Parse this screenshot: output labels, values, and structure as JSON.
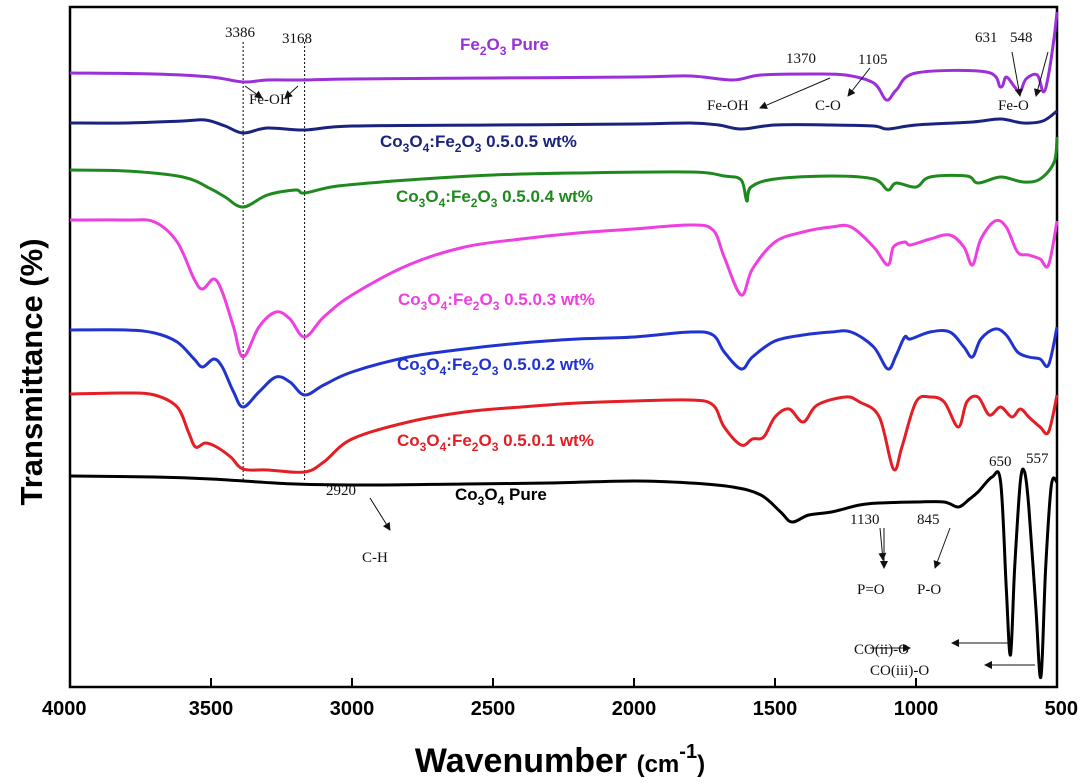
{
  "chart_data": {
    "type": "line",
    "xlabel_main": "Wavenumber ",
    "xlabel_unit_pre": "(cm",
    "xlabel_unit_sup": "-1",
    "xlabel_unit_post": ")",
    "ylabel": "Transmittance (%)",
    "xlim": [
      4000,
      500
    ],
    "x_reversed": true,
    "y_ticks_shown": false,
    "grid": false,
    "x_ticks": [
      {
        "v": 4000,
        "label": "4000"
      },
      {
        "v": 3500,
        "label": "3500"
      },
      {
        "v": 3000,
        "label": "3000"
      },
      {
        "v": 2500,
        "label": "2500"
      },
      {
        "v": 2000,
        "label": "2000"
      },
      {
        "v": 1500,
        "label": "1500"
      },
      {
        "v": 1000,
        "label": "1000"
      },
      {
        "v": 500,
        "label": "500"
      }
    ],
    "reference_lines": [
      3386,
      3168
    ],
    "series": [
      {
        "name": "Fe2O3 Pure",
        "label_parts": [
          "Fe",
          "2",
          "O",
          "3",
          " Pure"
        ],
        "color": "#9b30d9",
        "points": [
          [
            4000,
            66
          ],
          [
            3700,
            67
          ],
          [
            3500,
            70
          ],
          [
            3386,
            75
          ],
          [
            3300,
            73
          ],
          [
            3168,
            73
          ],
          [
            3000,
            72
          ],
          [
            2500,
            71
          ],
          [
            2000,
            70
          ],
          [
            1800,
            69
          ],
          [
            1650,
            73
          ],
          [
            1550,
            68
          ],
          [
            1370,
            67
          ],
          [
            1250,
            68
          ],
          [
            1150,
            76
          ],
          [
            1105,
            93
          ],
          [
            1070,
            83
          ],
          [
            1000,
            66
          ],
          [
            750,
            65
          ],
          [
            700,
            80
          ],
          [
            680,
            70
          ],
          [
            650,
            80
          ],
          [
            631,
            85
          ],
          [
            610,
            72
          ],
          [
            570,
            68
          ],
          [
            548,
            85
          ],
          [
            530,
            68
          ],
          [
            510,
            30
          ],
          [
            500,
            5
          ]
        ]
      },
      {
        "name": "Co3O4:Fe2O3 0.5.0.5 wt%",
        "label_parts": [
          "Co",
          "3",
          "O",
          "4",
          ":Fe",
          "2",
          "O",
          "3",
          " 0.5.0.5 wt%"
        ],
        "color": "#1a237e",
        "points": [
          [
            4000,
            116
          ],
          [
            3800,
            116
          ],
          [
            3600,
            114
          ],
          [
            3520,
            113
          ],
          [
            3450,
            119
          ],
          [
            3386,
            126
          ],
          [
            3300,
            121
          ],
          [
            3168,
            123
          ],
          [
            3000,
            119
          ],
          [
            2500,
            118
          ],
          [
            2000,
            117
          ],
          [
            1800,
            116
          ],
          [
            1700,
            118
          ],
          [
            1620,
            122
          ],
          [
            1500,
            118
          ],
          [
            1300,
            118
          ],
          [
            1150,
            119
          ],
          [
            1100,
            122
          ],
          [
            1000,
            118
          ],
          [
            800,
            115
          ],
          [
            700,
            112
          ],
          [
            620,
            116
          ],
          [
            550,
            114
          ],
          [
            500,
            104
          ]
        ]
      },
      {
        "name": "Co3O4:Fe2O3 0.5.0.4 wt%",
        "label_parts": [
          "Co",
          "3",
          "O",
          "4",
          ":Fe",
          "2",
          "O",
          "3",
          " 0.5.0.4 wt%"
        ],
        "color": "#1e8a1e",
        "points": [
          [
            4000,
            163
          ],
          [
            3800,
            164
          ],
          [
            3600,
            170
          ],
          [
            3500,
            182
          ],
          [
            3450,
            190
          ],
          [
            3386,
            200
          ],
          [
            3300,
            188
          ],
          [
            3200,
            183
          ],
          [
            3168,
            186
          ],
          [
            3050,
            179
          ],
          [
            2800,
            173
          ],
          [
            2500,
            168
          ],
          [
            2200,
            166
          ],
          [
            1800,
            165
          ],
          [
            1680,
            169
          ],
          [
            1620,
            173
          ],
          [
            1600,
            194
          ],
          [
            1585,
            180
          ],
          [
            1500,
            172
          ],
          [
            1300,
            169
          ],
          [
            1150,
            172
          ],
          [
            1100,
            183
          ],
          [
            1070,
            176
          ],
          [
            1000,
            180
          ],
          [
            950,
            170
          ],
          [
            820,
            169
          ],
          [
            780,
            176
          ],
          [
            700,
            170
          ],
          [
            620,
            175
          ],
          [
            560,
            172
          ],
          [
            510,
            155
          ],
          [
            500,
            130
          ]
        ]
      },
      {
        "name": "Co3O4:Fe2O3 0.5.0.3 wt%",
        "label_parts": [
          "Co",
          "3",
          "O",
          "4",
          ":Fe",
          "2",
          "O",
          "3",
          " 0.5.0.3 wt%"
        ],
        "color": "#ee3fe0",
        "points": [
          [
            4000,
            213
          ],
          [
            3800,
            213
          ],
          [
            3700,
            215
          ],
          [
            3620,
            235
          ],
          [
            3560,
            272
          ],
          [
            3530,
            282
          ],
          [
            3490,
            272
          ],
          [
            3460,
            285
          ],
          [
            3420,
            320
          ],
          [
            3386,
            350
          ],
          [
            3330,
            320
          ],
          [
            3270,
            305
          ],
          [
            3220,
            312
          ],
          [
            3168,
            330
          ],
          [
            3100,
            310
          ],
          [
            3000,
            288
          ],
          [
            2800,
            258
          ],
          [
            2600,
            240
          ],
          [
            2400,
            232
          ],
          [
            2200,
            226
          ],
          [
            2000,
            222
          ],
          [
            1800,
            218
          ],
          [
            1720,
            223
          ],
          [
            1680,
            250
          ],
          [
            1620,
            288
          ],
          [
            1580,
            262
          ],
          [
            1500,
            235
          ],
          [
            1400,
            225
          ],
          [
            1300,
            220
          ],
          [
            1230,
            220
          ],
          [
            1150,
            240
          ],
          [
            1100,
            258
          ],
          [
            1080,
            240
          ],
          [
            1040,
            235
          ],
          [
            1020,
            238
          ],
          [
            950,
            232
          ],
          [
            880,
            228
          ],
          [
            830,
            240
          ],
          [
            800,
            258
          ],
          [
            770,
            232
          ],
          [
            720,
            214
          ],
          [
            680,
            220
          ],
          [
            640,
            245
          ],
          [
            600,
            248
          ],
          [
            560,
            252
          ],
          [
            530,
            258
          ],
          [
            500,
            214
          ]
        ]
      },
      {
        "name": "Co3O4:Fe2O3 0.5.0.2 wt%",
        "label_parts": [
          "Co",
          "3",
          "O",
          "4",
          ":Fe",
          "2",
          "O",
          "3",
          " 0.5.0.2 wt%"
        ],
        "color": "#2033d0",
        "points": [
          [
            4000,
            323
          ],
          [
            3800,
            323
          ],
          [
            3700,
            326
          ],
          [
            3620,
            335
          ],
          [
            3560,
            352
          ],
          [
            3530,
            360
          ],
          [
            3490,
            352
          ],
          [
            3460,
            360
          ],
          [
            3420,
            385
          ],
          [
            3386,
            400
          ],
          [
            3330,
            385
          ],
          [
            3270,
            370
          ],
          [
            3220,
            375
          ],
          [
            3168,
            388
          ],
          [
            3100,
            378
          ],
          [
            3000,
            365
          ],
          [
            2800,
            350
          ],
          [
            2600,
            342
          ],
          [
            2400,
            336
          ],
          [
            2200,
            332
          ],
          [
            2000,
            330
          ],
          [
            1800,
            325
          ],
          [
            1720,
            328
          ],
          [
            1680,
            345
          ],
          [
            1620,
            362
          ],
          [
            1580,
            350
          ],
          [
            1500,
            334
          ],
          [
            1400,
            328
          ],
          [
            1300,
            325
          ],
          [
            1230,
            325
          ],
          [
            1150,
            340
          ],
          [
            1100,
            362
          ],
          [
            1070,
            348
          ],
          [
            1040,
            330
          ],
          [
            1020,
            332
          ],
          [
            950,
            325
          ],
          [
            880,
            325
          ],
          [
            830,
            340
          ],
          [
            800,
            350
          ],
          [
            770,
            332
          ],
          [
            720,
            322
          ],
          [
            680,
            328
          ],
          [
            640,
            345
          ],
          [
            600,
            350
          ],
          [
            560,
            352
          ],
          [
            530,
            358
          ],
          [
            500,
            320
          ]
        ]
      },
      {
        "name": "Co3O4:Fe2O3 0.5.0.1 wt%",
        "label_parts": [
          "Co",
          "3",
          "O",
          "4",
          ":Fe",
          "2",
          "O",
          "3",
          " 0.5.0.1 wt%"
        ],
        "color": "#e31e24",
        "points": [
          [
            4000,
            387
          ],
          [
            3800,
            386
          ],
          [
            3700,
            388
          ],
          [
            3620,
            400
          ],
          [
            3580,
            425
          ],
          [
            3555,
            440
          ],
          [
            3520,
            436
          ],
          [
            3480,
            440
          ],
          [
            3430,
            450
          ],
          [
            3386,
            462
          ],
          [
            3300,
            463
          ],
          [
            3168,
            465
          ],
          [
            3100,
            455
          ],
          [
            3000,
            432
          ],
          [
            2800,
            415
          ],
          [
            2600,
            405
          ],
          [
            2400,
            400
          ],
          [
            2200,
            396
          ],
          [
            2000,
            394
          ],
          [
            1800,
            393
          ],
          [
            1720,
            398
          ],
          [
            1680,
            420
          ],
          [
            1620,
            438
          ],
          [
            1580,
            432
          ],
          [
            1540,
            430
          ],
          [
            1500,
            410
          ],
          [
            1450,
            402
          ],
          [
            1400,
            415
          ],
          [
            1350,
            398
          ],
          [
            1250,
            390
          ],
          [
            1200,
            395
          ],
          [
            1130,
            410
          ],
          [
            1080,
            462
          ],
          [
            1050,
            440
          ],
          [
            1000,
            395
          ],
          [
            950,
            390
          ],
          [
            900,
            395
          ],
          [
            850,
            420
          ],
          [
            820,
            395
          ],
          [
            780,
            390
          ],
          [
            740,
            408
          ],
          [
            700,
            400
          ],
          [
            660,
            410
          ],
          [
            630,
            402
          ],
          [
            600,
            410
          ],
          [
            560,
            420
          ],
          [
            530,
            425
          ],
          [
            500,
            388
          ]
        ]
      },
      {
        "name": "Co3O4 Pure",
        "label_parts": [
          "Co",
          "3",
          "O",
          "4",
          " Pure"
        ],
        "color": "#000000",
        "points": [
          [
            4000,
            469
          ],
          [
            3700,
            470
          ],
          [
            3500,
            472
          ],
          [
            3200,
            477
          ],
          [
            2920,
            478
          ],
          [
            2600,
            477
          ],
          [
            2300,
            476
          ],
          [
            2000,
            474
          ],
          [
            1800,
            476
          ],
          [
            1650,
            480
          ],
          [
            1550,
            488
          ],
          [
            1480,
            505
          ],
          [
            1440,
            515
          ],
          [
            1380,
            508
          ],
          [
            1300,
            505
          ],
          [
            1200,
            498
          ],
          [
            1130,
            496
          ],
          [
            1000,
            495
          ],
          [
            900,
            495
          ],
          [
            850,
            500
          ],
          [
            810,
            492
          ],
          [
            780,
            485
          ],
          [
            730,
            470
          ],
          [
            700,
            475
          ],
          [
            680,
            580
          ],
          [
            665,
            648
          ],
          [
            650,
            560
          ],
          [
            630,
            475
          ],
          [
            615,
            465
          ],
          [
            600,
            500
          ],
          [
            575,
            600
          ],
          [
            557,
            670
          ],
          [
            540,
            560
          ],
          [
            520,
            478
          ],
          [
            500,
            475
          ]
        ]
      }
    ],
    "annotations": [
      {
        "text": "3386"
      },
      {
        "text": "3168"
      },
      {
        "text": "Fe-OH"
      },
      {
        "text": "1370"
      },
      {
        "text": "1105"
      },
      {
        "text": "631"
      },
      {
        "text": "548"
      },
      {
        "text": "Fe-OH"
      },
      {
        "text": "C-O"
      },
      {
        "text": "Fe-O"
      },
      {
        "text": "2920"
      },
      {
        "text": "C-H"
      },
      {
        "text": "1130"
      },
      {
        "text": "845"
      },
      {
        "text": "P=O"
      },
      {
        "text": "P-O"
      },
      {
        "text": "650"
      },
      {
        "text": "557"
      },
      {
        "text": "CO(ii)-O"
      },
      {
        "text": "CO(iii)-O"
      }
    ]
  }
}
